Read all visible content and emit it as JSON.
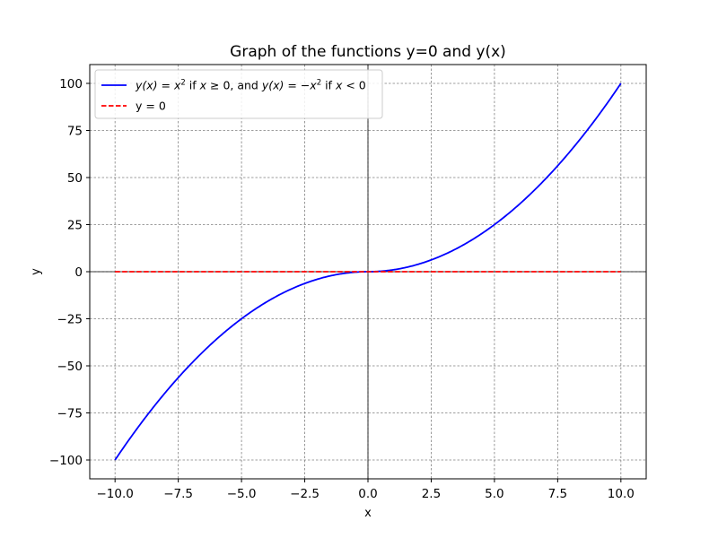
{
  "chart_data": {
    "type": "line",
    "title": "Graph of the functions y=0 and y(x)",
    "xlabel": "x",
    "ylabel": "y",
    "xlim": [
      -11,
      11
    ],
    "ylim": [
      -110,
      110
    ],
    "grid": true,
    "legend_position": "top-left",
    "x_ticks": [
      -10,
      -7.5,
      -5,
      -2.5,
      0,
      2.5,
      5,
      7.5,
      10
    ],
    "x_tick_labels": [
      "−10.0",
      "−7.5",
      "−5.0",
      "−2.5",
      "0.0",
      "2.5",
      "5.0",
      "7.5",
      "10.0"
    ],
    "y_ticks": [
      -100,
      -75,
      -50,
      -25,
      0,
      25,
      50,
      75,
      100
    ],
    "y_tick_labels": [
      "−100",
      "−75",
      "−50",
      "−25",
      "0",
      "25",
      "50",
      "75",
      "100"
    ],
    "reference_lines": {
      "x": 0,
      "y": 0,
      "color": "#000000"
    },
    "series": [
      {
        "name": "y(x) = x² if x ≥ 0, and y(x) = −x² if x < 0",
        "legend_parts": {
          "a": "y(x) = x",
          "a_sup": "2",
          "b": " if ",
          "c": "x",
          "d": " ≥ 0, and ",
          "e": "y(x) = −x",
          "e_sup": "2",
          "f": " if ",
          "g": "x",
          "h": " < 0"
        },
        "function": "x*|x|",
        "color": "#0000ff",
        "style": "solid",
        "x": [
          -10,
          -9,
          -8,
          -7,
          -6,
          -5,
          -4,
          -3,
          -2,
          -1,
          0,
          1,
          2,
          3,
          4,
          5,
          6,
          7,
          8,
          9,
          10
        ],
        "y": [
          -100,
          -81,
          -64,
          -49,
          -36,
          -25,
          -16,
          -9,
          -4,
          -1,
          0,
          1,
          4,
          9,
          16,
          25,
          36,
          49,
          64,
          81,
          100
        ]
      },
      {
        "name": "y = 0",
        "color": "#ff0000",
        "style": "dashed",
        "x": [
          -10,
          10
        ],
        "y": [
          0,
          0
        ]
      }
    ]
  }
}
